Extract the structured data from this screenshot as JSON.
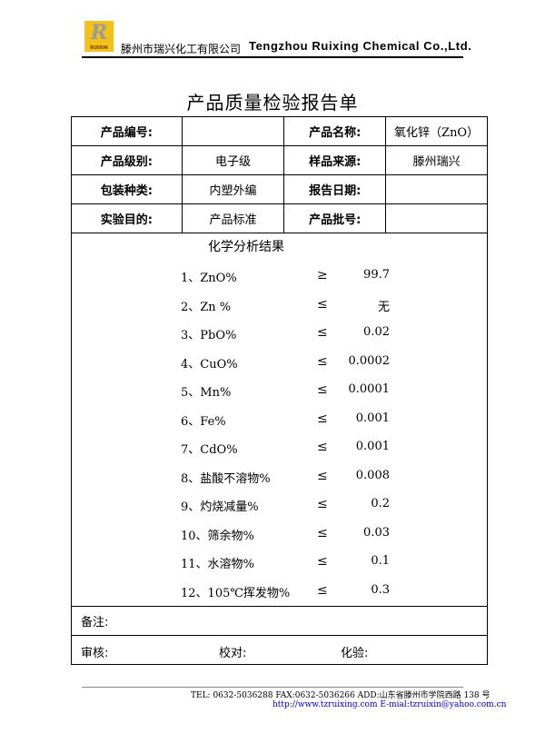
{
  "header": {
    "logo_text": "RUIXIN",
    "company_cn": "滕州市瑞兴化工有限公司",
    "company_en": "Tengzhou Ruixing Chemical Co.,Ltd."
  },
  "title": "产品质量检验报告单",
  "info": [
    {
      "l1": "产品编号:",
      "v1": "",
      "l2": "产品名称:",
      "v2": "氧化锌（ZnO）"
    },
    {
      "l1": "产品级别:",
      "v1": "电子级",
      "l2": "样品来源:",
      "v2": "滕州瑞兴"
    },
    {
      "l1": "包装种类:",
      "v1": "内塑外编",
      "l2": "报告日期:",
      "v2": ""
    },
    {
      "l1": "实验目的:",
      "v1": "产品标准",
      "l2": "产品批号:",
      "v2": ""
    }
  ],
  "results": {
    "title": "化学分析结果",
    "items": [
      {
        "name": "1、ZnO%",
        "op": "≥",
        "value": "99.7"
      },
      {
        "name": "2、Zn %",
        "op": "≤",
        "value": "无"
      },
      {
        "name": "3、PbO%",
        "op": "≤",
        "value": "0.02"
      },
      {
        "name": "4、CuO%",
        "op": "≤",
        "value": "0.0002"
      },
      {
        "name": "5、Mn%",
        "op": "≤",
        "value": "0.0001"
      },
      {
        "name": "6、Fe%",
        "op": "≤",
        "value": "0.001"
      },
      {
        "name": "7、CdO%",
        "op": "≤",
        "value": "0.001"
      },
      {
        "name": "8、盐酸不溶物%",
        "op": "≤",
        "value": "0.008"
      },
      {
        "name": "9、灼烧减量%",
        "op": "≤",
        "value": "0.2"
      },
      {
        "name": "10、筛余物%",
        "op": "≤",
        "value": "0.03"
      },
      {
        "name": "11、水溶物%",
        "op": "≤",
        "value": "0.1"
      },
      {
        "name": "12、105℃挥发物%",
        "op": "≤",
        "value": "0.3"
      }
    ]
  },
  "remarks_label": "备注:",
  "sign": {
    "review": "审核:",
    "check": "校对:",
    "test": "化验:"
  },
  "footer": {
    "line1": "TEL: 0632-5036288    FAX:0632-5036266 ADD:山东省滕州市学院西路 138 号",
    "url": "http://www.tzruixing.com",
    "email": "E-mial:tzruixin@yahoo.com.cn"
  }
}
